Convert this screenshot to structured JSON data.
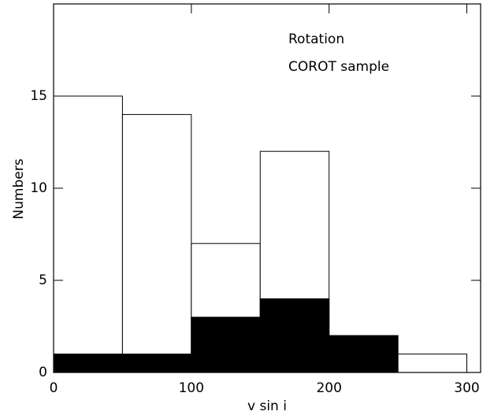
{
  "chart_data": {
    "type": "histogram",
    "xlabel": "v sin i",
    "ylabel": "Numbers",
    "annotations": [
      "Rotation",
      "COROT sample"
    ],
    "bins": [
      0,
      50,
      100,
      150,
      200,
      250,
      300
    ],
    "series": [
      {
        "color": "#ffffff",
        "values": [
          15,
          14,
          7,
          12,
          2,
          1
        ]
      },
      {
        "color": "#000000",
        "values": [
          1,
          1,
          3,
          4,
          2,
          0
        ]
      }
    ],
    "xlim": [
      0,
      310
    ],
    "ylim": [
      0,
      20
    ],
    "xticks": [
      0,
      100,
      200,
      300
    ],
    "yticks": [
      0,
      5,
      10,
      15
    ]
  }
}
